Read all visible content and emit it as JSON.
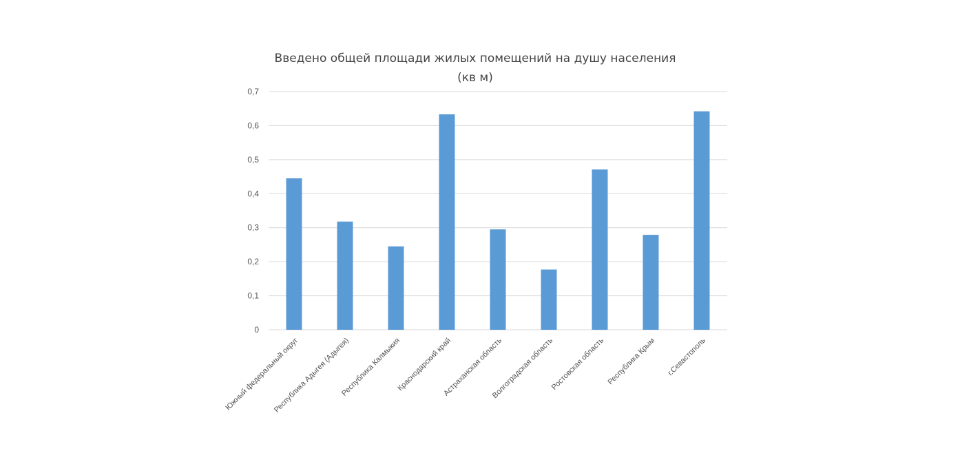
{
  "chart_data": {
    "type": "bar",
    "title_lines": [
      "Введено общей площади жилых помещений на душу населения",
      "(кв м)"
    ],
    "categories": [
      "Южный федеральный округ",
      "Республика Адыгея (Адыгея)",
      "Республика Калмыкия",
      "Краснодарский край",
      "Астраханская область",
      "Волгоградская область",
      "Ростовская область",
      "Республика Крым",
      "г.Севастополь"
    ],
    "values": [
      0.445,
      0.318,
      0.245,
      0.633,
      0.295,
      0.177,
      0.471,
      0.279,
      0.642
    ],
    "ylim": [
      0,
      0.7
    ],
    "yticks": [
      0,
      0.1,
      0.2,
      0.3,
      0.4,
      0.5,
      0.6,
      0.7
    ],
    "ytick_labels": [
      "0",
      "0,1",
      "0,2",
      "0,3",
      "0,4",
      "0,5",
      "0,6",
      "0,7"
    ],
    "grid": true,
    "legend": "none",
    "bar_color": "#5b9bd5"
  }
}
